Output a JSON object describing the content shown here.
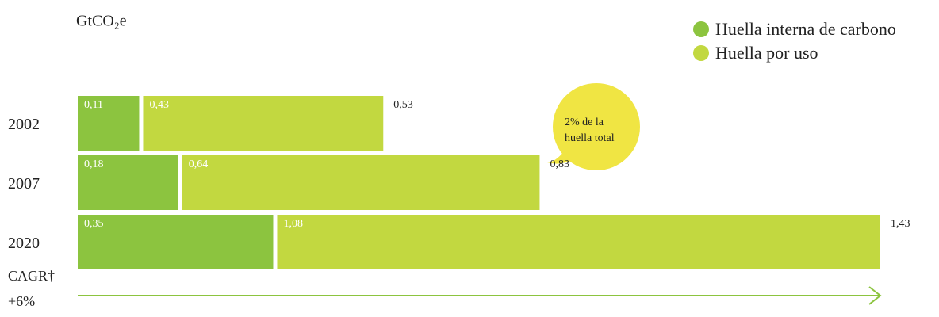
{
  "chart_data": {
    "type": "stacked-barh",
    "title": "GtCO₂e",
    "categories": [
      "2002",
      "2007",
      "2020"
    ],
    "series": [
      {
        "name": "Huella interna de carbono",
        "color": "#8cc43f",
        "values": [
          0.11,
          0.18,
          0.35
        ],
        "value_labels": [
          "0,11",
          "0,18",
          "0,35"
        ]
      },
      {
        "name": "Huella por uso",
        "color": "#c2d840",
        "values": [
          0.43,
          0.64,
          1.08
        ],
        "value_labels": [
          "0,43",
          "0,64",
          "1,08"
        ]
      }
    ],
    "totals": [
      0.53,
      0.83,
      1.43
    ],
    "total_labels": [
      "0,53",
      "0,83",
      "1,43"
    ],
    "annotation": [
      "2% de la",
      "huella total"
    ],
    "growth_label": "CAGR†",
    "growth_value": "+6%"
  }
}
